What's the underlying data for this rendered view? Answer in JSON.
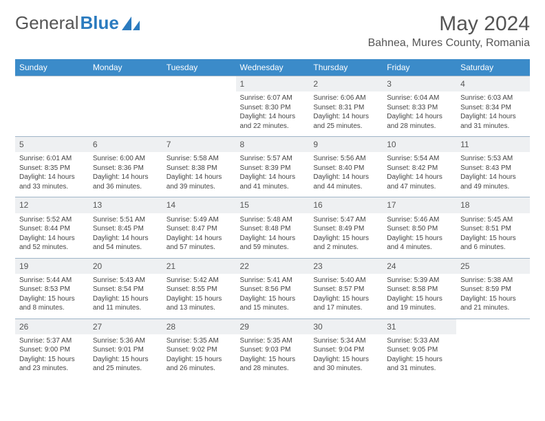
{
  "brand": {
    "part1": "General",
    "part2": "Blue"
  },
  "header": {
    "month_title": "May 2024",
    "location": "Bahnea, Mures County, Romania"
  },
  "calendar": {
    "day_labels": [
      "Sunday",
      "Monday",
      "Tuesday",
      "Wednesday",
      "Thursday",
      "Friday",
      "Saturday"
    ],
    "header_bg": "#3b8bc9",
    "header_fg": "#ffffff",
    "daynum_bg": "#eef0f2",
    "border_color": "#9fb5c7",
    "text_color": "#444444",
    "font_size_body": 10,
    "font_size_daynum": 12,
    "weeks": [
      [
        null,
        null,
        null,
        {
          "n": "1",
          "sr": "6:07 AM",
          "ss": "8:30 PM",
          "dl": "14 hours and 22 minutes."
        },
        {
          "n": "2",
          "sr": "6:06 AM",
          "ss": "8:31 PM",
          "dl": "14 hours and 25 minutes."
        },
        {
          "n": "3",
          "sr": "6:04 AM",
          "ss": "8:33 PM",
          "dl": "14 hours and 28 minutes."
        },
        {
          "n": "4",
          "sr": "6:03 AM",
          "ss": "8:34 PM",
          "dl": "14 hours and 31 minutes."
        }
      ],
      [
        {
          "n": "5",
          "sr": "6:01 AM",
          "ss": "8:35 PM",
          "dl": "14 hours and 33 minutes."
        },
        {
          "n": "6",
          "sr": "6:00 AM",
          "ss": "8:36 PM",
          "dl": "14 hours and 36 minutes."
        },
        {
          "n": "7",
          "sr": "5:58 AM",
          "ss": "8:38 PM",
          "dl": "14 hours and 39 minutes."
        },
        {
          "n": "8",
          "sr": "5:57 AM",
          "ss": "8:39 PM",
          "dl": "14 hours and 41 minutes."
        },
        {
          "n": "9",
          "sr": "5:56 AM",
          "ss": "8:40 PM",
          "dl": "14 hours and 44 minutes."
        },
        {
          "n": "10",
          "sr": "5:54 AM",
          "ss": "8:42 PM",
          "dl": "14 hours and 47 minutes."
        },
        {
          "n": "11",
          "sr": "5:53 AM",
          "ss": "8:43 PM",
          "dl": "14 hours and 49 minutes."
        }
      ],
      [
        {
          "n": "12",
          "sr": "5:52 AM",
          "ss": "8:44 PM",
          "dl": "14 hours and 52 minutes."
        },
        {
          "n": "13",
          "sr": "5:51 AM",
          "ss": "8:45 PM",
          "dl": "14 hours and 54 minutes."
        },
        {
          "n": "14",
          "sr": "5:49 AM",
          "ss": "8:47 PM",
          "dl": "14 hours and 57 minutes."
        },
        {
          "n": "15",
          "sr": "5:48 AM",
          "ss": "8:48 PM",
          "dl": "14 hours and 59 minutes."
        },
        {
          "n": "16",
          "sr": "5:47 AM",
          "ss": "8:49 PM",
          "dl": "15 hours and 2 minutes."
        },
        {
          "n": "17",
          "sr": "5:46 AM",
          "ss": "8:50 PM",
          "dl": "15 hours and 4 minutes."
        },
        {
          "n": "18",
          "sr": "5:45 AM",
          "ss": "8:51 PM",
          "dl": "15 hours and 6 minutes."
        }
      ],
      [
        {
          "n": "19",
          "sr": "5:44 AM",
          "ss": "8:53 PM",
          "dl": "15 hours and 8 minutes."
        },
        {
          "n": "20",
          "sr": "5:43 AM",
          "ss": "8:54 PM",
          "dl": "15 hours and 11 minutes."
        },
        {
          "n": "21",
          "sr": "5:42 AM",
          "ss": "8:55 PM",
          "dl": "15 hours and 13 minutes."
        },
        {
          "n": "22",
          "sr": "5:41 AM",
          "ss": "8:56 PM",
          "dl": "15 hours and 15 minutes."
        },
        {
          "n": "23",
          "sr": "5:40 AM",
          "ss": "8:57 PM",
          "dl": "15 hours and 17 minutes."
        },
        {
          "n": "24",
          "sr": "5:39 AM",
          "ss": "8:58 PM",
          "dl": "15 hours and 19 minutes."
        },
        {
          "n": "25",
          "sr": "5:38 AM",
          "ss": "8:59 PM",
          "dl": "15 hours and 21 minutes."
        }
      ],
      [
        {
          "n": "26",
          "sr": "5:37 AM",
          "ss": "9:00 PM",
          "dl": "15 hours and 23 minutes."
        },
        {
          "n": "27",
          "sr": "5:36 AM",
          "ss": "9:01 PM",
          "dl": "15 hours and 25 minutes."
        },
        {
          "n": "28",
          "sr": "5:35 AM",
          "ss": "9:02 PM",
          "dl": "15 hours and 26 minutes."
        },
        {
          "n": "29",
          "sr": "5:35 AM",
          "ss": "9:03 PM",
          "dl": "15 hours and 28 minutes."
        },
        {
          "n": "30",
          "sr": "5:34 AM",
          "ss": "9:04 PM",
          "dl": "15 hours and 30 minutes."
        },
        {
          "n": "31",
          "sr": "5:33 AM",
          "ss": "9:05 PM",
          "dl": "15 hours and 31 minutes."
        },
        null
      ]
    ],
    "labels": {
      "sunrise": "Sunrise:",
      "sunset": "Sunset:",
      "daylight": "Daylight:"
    }
  }
}
